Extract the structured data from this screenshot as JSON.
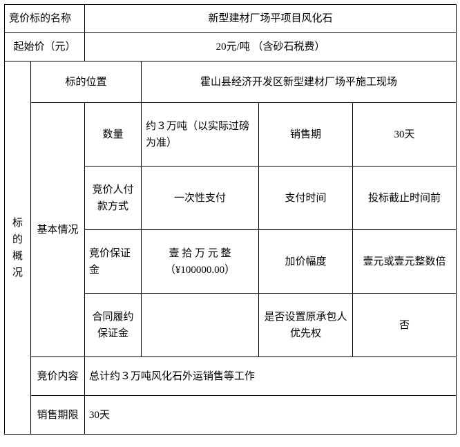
{
  "row1": {
    "label": "竞价标的名称",
    "value": "新型建材厂场平项目风化石"
  },
  "row2": {
    "label": "起始价（元）",
    "value": "20元/吨 （含砂石税费）"
  },
  "sideLabel": {
    "c1": "标",
    "c2": "的",
    "c3": "概",
    "c4": "况"
  },
  "location": {
    "label": "标的位置",
    "value": "霍山县经济开发区新型建材厂场平施工现场"
  },
  "basicLabel": "基本情况",
  "r4": {
    "a": "数量",
    "b": "约３万吨（以实际过磅为准）",
    "c": "销售期",
    "d": "30天"
  },
  "r5": {
    "a": "竞价人付款方式",
    "b": "一次性支付",
    "c": "支付时间",
    "d": "投标截止时间前"
  },
  "r6": {
    "a": "竞价保证金",
    "b": "壹 拾 万 元 整（¥100000.00）",
    "c": "加价幅度",
    "d": "壹元或壹元整数倍"
  },
  "r7": {
    "a": "合同履约保证金",
    "b": "",
    "c": "是否设置原承包人优先权",
    "d": "否"
  },
  "r8": {
    "label": "竞价内容",
    "value": "总计约３万吨风化石外运销售等工作"
  },
  "r9": {
    "label": "销售期限",
    "value": "30天"
  }
}
